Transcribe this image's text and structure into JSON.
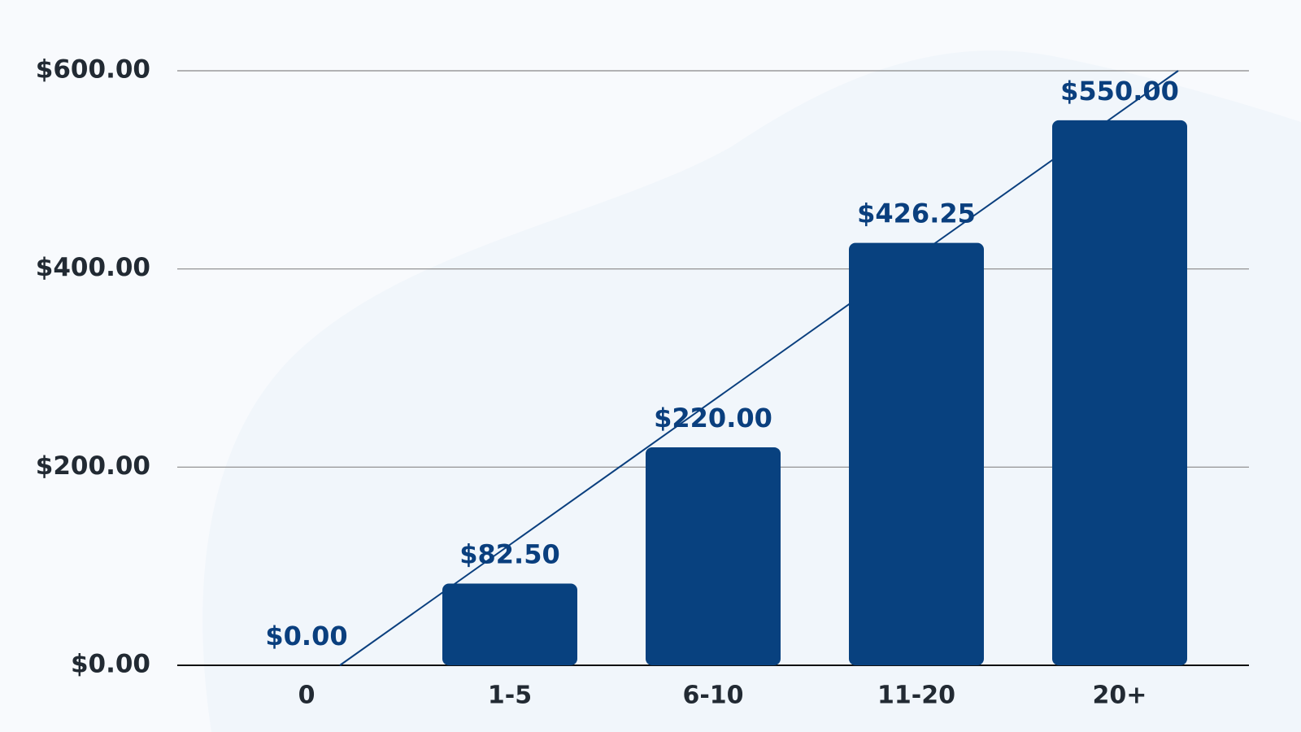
{
  "chart_data": {
    "type": "bar",
    "categories": [
      "0",
      "1-5",
      "6-10",
      "11-20",
      "20+"
    ],
    "values": [
      0,
      82.5,
      220,
      426.25,
      550
    ],
    "value_labels": [
      "$0.00",
      "$82.50",
      "$220.00",
      "$426.25",
      "$550.00"
    ],
    "color": "#08417f",
    "ylim": [
      0,
      600
    ],
    "yticks": [
      {
        "value": 0,
        "label": "$0.00"
      },
      {
        "value": 200,
        "label": "$200.00"
      },
      {
        "value": 400,
        "label": "$400.00"
      },
      {
        "value": 600,
        "label": "$600.00"
      }
    ],
    "grid": true
  }
}
